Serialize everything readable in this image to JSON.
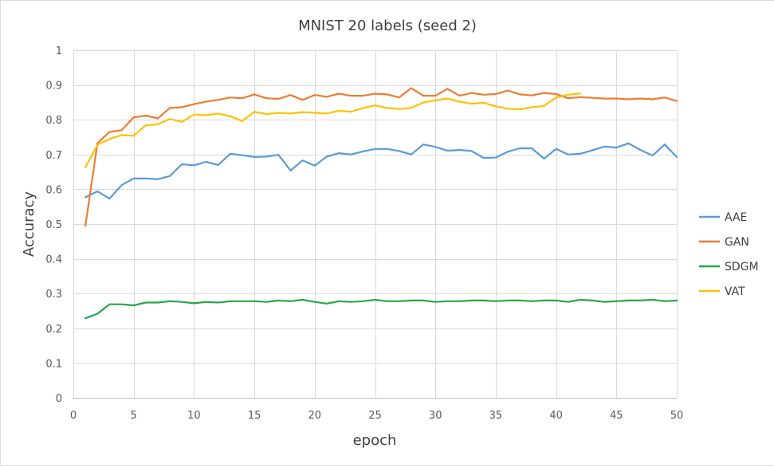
{
  "chart_data": {
    "type": "line",
    "title": "MNIST 20 labels (seed 2)",
    "xlabel": "epoch",
    "ylabel": "Accuracy",
    "xlim": [
      0,
      50
    ],
    "ylim": [
      0,
      1
    ],
    "xticks": [
      0,
      5,
      10,
      15,
      20,
      25,
      30,
      35,
      40,
      45,
      50
    ],
    "yticks": [
      0,
      0.1,
      0.2,
      0.3,
      0.4,
      0.5,
      0.6,
      0.7,
      0.8,
      0.9,
      1
    ],
    "ytick_labels": [
      "0",
      "0.1",
      "0.2",
      "0.3",
      "0.4",
      "0.5",
      "0.6",
      "0.7",
      "0.8",
      "0.9",
      "1"
    ],
    "grid": true,
    "legend_position": "right",
    "series": [
      {
        "name": "AAE",
        "color": "#5b9bd5",
        "x": [
          1,
          2,
          3,
          4,
          5,
          6,
          7,
          8,
          9,
          10,
          11,
          12,
          13,
          14,
          15,
          16,
          17,
          18,
          19,
          20,
          21,
          22,
          23,
          24,
          25,
          26,
          27,
          28,
          29,
          30,
          31,
          32,
          33,
          34,
          35,
          36,
          37,
          38,
          39,
          40,
          41,
          42,
          43,
          44,
          45,
          46,
          47,
          48,
          49,
          50
        ],
        "values": [
          0.577,
          0.594,
          0.573,
          0.612,
          0.631,
          0.631,
          0.629,
          0.638,
          0.672,
          0.669,
          0.679,
          0.67,
          0.702,
          0.698,
          0.693,
          0.694,
          0.699,
          0.654,
          0.683,
          0.668,
          0.694,
          0.704,
          0.7,
          0.709,
          0.716,
          0.716,
          0.71,
          0.7,
          0.729,
          0.722,
          0.711,
          0.713,
          0.71,
          0.69,
          0.691,
          0.708,
          0.718,
          0.718,
          0.688,
          0.716,
          0.7,
          0.702,
          0.712,
          0.723,
          0.72,
          0.732,
          0.713,
          0.697,
          0.729,
          0.693
        ]
      },
      {
        "name": "GAN",
        "color": "#ed7d31",
        "x": [
          1,
          2,
          3,
          4,
          5,
          6,
          7,
          8,
          9,
          10,
          11,
          12,
          13,
          14,
          15,
          16,
          17,
          18,
          19,
          20,
          21,
          22,
          23,
          24,
          25,
          26,
          27,
          28,
          29,
          30,
          31,
          32,
          33,
          34,
          35,
          36,
          37,
          38,
          39,
          40,
          41,
          42,
          43,
          44,
          45,
          46,
          47,
          48,
          49,
          50
        ],
        "values": [
          0.494,
          0.733,
          0.765,
          0.77,
          0.807,
          0.812,
          0.804,
          0.834,
          0.836,
          0.845,
          0.852,
          0.857,
          0.864,
          0.862,
          0.873,
          0.862,
          0.86,
          0.871,
          0.857,
          0.871,
          0.866,
          0.875,
          0.869,
          0.869,
          0.875,
          0.873,
          0.864,
          0.891,
          0.869,
          0.869,
          0.889,
          0.869,
          0.877,
          0.872,
          0.874,
          0.884,
          0.873,
          0.87,
          0.877,
          0.874,
          0.862,
          0.865,
          0.863,
          0.861,
          0.861,
          0.859,
          0.861,
          0.859,
          0.864,
          0.854
        ]
      },
      {
        "name": "SDGM",
        "color": "#27a74a",
        "x": [
          1,
          2,
          3,
          4,
          5,
          6,
          7,
          8,
          9,
          10,
          11,
          12,
          13,
          14,
          15,
          16,
          17,
          18,
          19,
          20,
          21,
          22,
          23,
          24,
          25,
          26,
          27,
          28,
          29,
          30,
          31,
          32,
          33,
          34,
          35,
          36,
          37,
          38,
          39,
          40,
          41,
          42,
          43,
          44,
          45,
          46,
          47,
          48,
          49,
          50
        ],
        "values": [
          0.229,
          0.242,
          0.269,
          0.269,
          0.266,
          0.274,
          0.274,
          0.278,
          0.276,
          0.272,
          0.276,
          0.274,
          0.278,
          0.278,
          0.278,
          0.276,
          0.28,
          0.278,
          0.282,
          0.276,
          0.271,
          0.278,
          0.276,
          0.278,
          0.282,
          0.278,
          0.278,
          0.28,
          0.28,
          0.276,
          0.278,
          0.278,
          0.28,
          0.28,
          0.278,
          0.28,
          0.28,
          0.278,
          0.28,
          0.28,
          0.276,
          0.282,
          0.28,
          0.276,
          0.278,
          0.28,
          0.28,
          0.282,
          0.278,
          0.28
        ]
      },
      {
        "name": "VAT",
        "color": "#ffc000",
        "x": [
          1,
          2,
          3,
          4,
          5,
          6,
          7,
          8,
          9,
          10,
          11,
          12,
          13,
          14,
          15,
          16,
          17,
          18,
          19,
          20,
          21,
          22,
          23,
          24,
          25,
          26,
          27,
          28,
          29,
          30,
          31,
          32,
          33,
          34,
          35,
          36,
          37,
          38,
          39,
          40,
          41,
          42
        ],
        "values": [
          0.663,
          0.728,
          0.745,
          0.756,
          0.754,
          0.784,
          0.787,
          0.802,
          0.794,
          0.815,
          0.813,
          0.818,
          0.81,
          0.796,
          0.823,
          0.816,
          0.82,
          0.818,
          0.822,
          0.82,
          0.818,
          0.826,
          0.823,
          0.834,
          0.841,
          0.834,
          0.831,
          0.834,
          0.85,
          0.856,
          0.861,
          0.852,
          0.846,
          0.849,
          0.838,
          0.832,
          0.83,
          0.836,
          0.84,
          0.864,
          0.872,
          0.876
        ]
      }
    ]
  }
}
